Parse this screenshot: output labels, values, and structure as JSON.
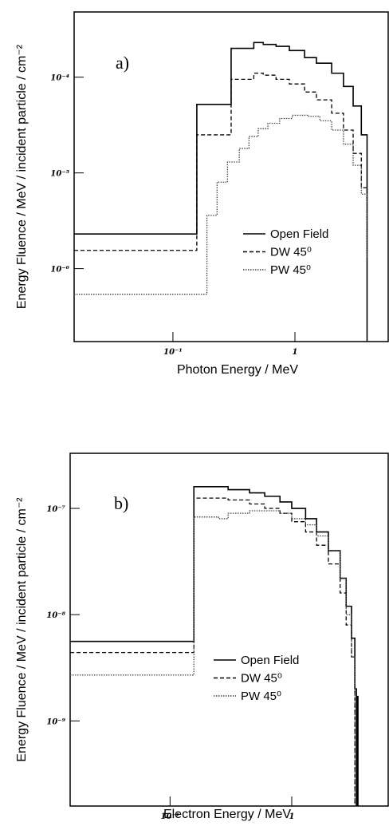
{
  "chart_data": [
    {
      "type": "line",
      "step": "post",
      "log_x": true,
      "log_y": true,
      "annotation": "a)",
      "xlabel": "Photon Energy /  MeV",
      "ylabel": "Energy Fluence / MeV / incident particle / cm⁻²",
      "xlim": [
        0.0155,
        5.9
      ],
      "ylim": [
        1.73e-07,
        0.00048
      ],
      "xticks": [
        {
          "value": 0.1,
          "label": "10⁻¹"
        },
        1
      ],
      "yticks": [
        {
          "value": 1e-06,
          "label": "10⁻⁶"
        },
        {
          "value": 1e-05,
          "label": "10⁻⁵"
        },
        {
          "value": 0.0001,
          "label": "10⁻⁴"
        }
      ],
      "series": [
        {
          "name": "Open Field",
          "color": "#000000",
          "dash": "solid",
          "x": [
            0.0155,
            0.157,
            0.3,
            0.46,
            0.55,
            0.7,
            0.9,
            1.2,
            1.5,
            2.0,
            2.5,
            3.0,
            3.5,
            3.9
          ],
          "values": [
            2.3e-06,
            5.2e-05,
            0.0002,
            0.00023,
            0.00022,
            0.00021,
            0.00019,
            0.00016,
            0.00014,
            0.00011,
            8e-05,
            5e-05,
            2.5e-05,
            1.73e-07
          ]
        },
        {
          "name": "DW 45⁰",
          "color": "#000000",
          "dash": "dashed",
          "x": [
            0.0155,
            0.157,
            0.3,
            0.46,
            0.55,
            0.7,
            0.9,
            1.2,
            1.5,
            2.0,
            2.5,
            3.0,
            3.5,
            3.9
          ],
          "values": [
            1.55e-06,
            2.5e-05,
            9.5e-05,
            0.00011,
            0.000105,
            9.5e-05,
            8.5e-05,
            7e-05,
            5.8e-05,
            4.2e-05,
            2.8e-05,
            1.6e-05,
            7e-06,
            1.4e-06
          ]
        },
        {
          "name": "PW 45⁰",
          "color": "#444444",
          "dash": "dotted",
          "x": [
            0.0155,
            0.19,
            0.23,
            0.28,
            0.35,
            0.42,
            0.5,
            0.6,
            0.75,
            0.95,
            1.3,
            1.6,
            2.0,
            2.5,
            3.0,
            3.5,
            3.9
          ],
          "values": [
            5.4e-07,
            3.6e-06,
            8e-06,
            1.3e-05,
            1.8e-05,
            2.4e-05,
            2.9e-05,
            3.3e-05,
            3.7e-05,
            4e-05,
            3.9e-05,
            3.5e-05,
            2.8e-05,
            2e-05,
            1.2e-05,
            6e-06,
            1.3e-06
          ]
        }
      ]
    },
    {
      "type": "line",
      "step": "post",
      "log_x": true,
      "log_y": true,
      "annotation": "b)",
      "xlabel": "Electron Energy /  MeV",
      "ylabel": "Energy Fluence / MeV / incident particle / cm⁻²",
      "xlim": [
        0.0151,
        6.3
      ],
      "ylim": [
        1.58e-10,
        3.3e-07
      ],
      "xticks": [
        {
          "value": 0.1,
          "label": "10⁻¹"
        },
        1
      ],
      "yticks": [
        {
          "value": 1e-09,
          "label": "10⁻⁹"
        },
        {
          "value": 1e-08,
          "label": "10⁻⁸"
        },
        {
          "value": 1e-07,
          "label": "10⁻⁷"
        }
      ],
      "series": [
        {
          "name": "Open Field",
          "color": "#000000",
          "dash": "solid",
          "x": [
            0.0151,
            0.157,
            0.3,
            0.45,
            0.6,
            0.8,
            1.0,
            1.3,
            1.6,
            2.0,
            2.5,
            2.8,
            3.1,
            3.3,
            3.4,
            3.45,
            3.5
          ],
          "values": [
            5.6e-09,
            1.6e-07,
            1.5e-07,
            1.4e-07,
            1.3e-07,
            1.15e-07,
            1e-07,
            8e-08,
            6e-08,
            4e-08,
            2.2e-08,
            1.2e-08,
            6e-09,
            2e-09,
            1.58e-10,
            1.7e-09,
            1.58e-10
          ]
        },
        {
          "name": "DW 45⁰",
          "color": "#000000",
          "dash": "dashed",
          "x": [
            0.0151,
            0.157,
            0.3,
            0.45,
            0.6,
            0.8,
            1.0,
            1.3,
            1.6,
            2.0,
            2.5,
            2.8,
            3.1,
            3.3
          ],
          "values": [
            4.4e-09,
            1.25e-07,
            1.2e-07,
            1.1e-07,
            1e-07,
            9e-08,
            7.5e-08,
            6e-08,
            4.5e-08,
            3e-08,
            1.6e-08,
            8e-09,
            4e-09,
            1.58e-10
          ]
        },
        {
          "name": "PW 45⁰",
          "color": "#444444",
          "dash": "dotted",
          "x": [
            0.0151,
            0.157,
            0.25,
            0.3,
            0.45,
            0.6,
            0.8,
            1.0,
            1.3,
            1.6,
            2.0,
            2.5,
            2.8,
            3.1,
            3.3
          ],
          "values": [
            2.7e-09,
            8.3e-08,
            8e-08,
            9e-08,
            9.5e-08,
            9.5e-08,
            9e-08,
            8e-08,
            7e-08,
            5.5e-08,
            4e-08,
            2.2e-08,
            1e-08,
            4e-09,
            1.58e-10
          ]
        }
      ]
    }
  ]
}
